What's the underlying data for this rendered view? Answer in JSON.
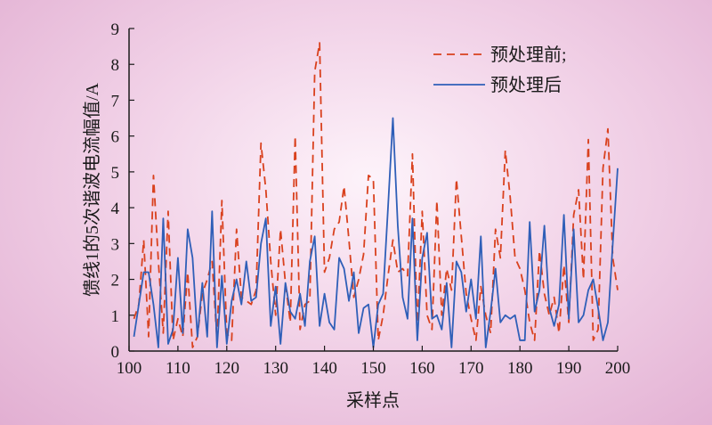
{
  "chart_data": {
    "type": "line",
    "title": "",
    "xlabel": "采样点",
    "ylabel": "馈线1的5次谐波电流幅值/A",
    "xlim": [
      100,
      200
    ],
    "ylim": [
      0,
      9
    ],
    "xticks": [
      100,
      110,
      120,
      130,
      140,
      150,
      160,
      170,
      180,
      190,
      200
    ],
    "yticks": [
      0,
      1,
      2,
      3,
      4,
      5,
      6,
      7,
      8,
      9
    ],
    "grid": false,
    "legend_position": "top-right",
    "x": [
      101,
      102,
      103,
      104,
      105,
      106,
      107,
      108,
      109,
      110,
      111,
      112,
      113,
      114,
      115,
      116,
      117,
      118,
      119,
      120,
      121,
      122,
      123,
      124,
      125,
      126,
      127,
      128,
      129,
      130,
      131,
      132,
      133,
      134,
      135,
      136,
      137,
      138,
      139,
      140,
      141,
      142,
      143,
      144,
      145,
      146,
      147,
      148,
      149,
      150,
      151,
      152,
      153,
      154,
      155,
      156,
      157,
      158,
      159,
      160,
      161,
      162,
      163,
      164,
      165,
      166,
      167,
      168,
      169,
      170,
      171,
      172,
      173,
      174,
      175,
      176,
      177,
      178,
      179,
      180,
      181,
      182,
      183,
      184,
      185,
      186,
      187,
      188,
      189,
      190,
      191,
      192,
      193,
      194,
      195,
      196,
      197,
      198,
      199,
      200
    ],
    "series": [
      {
        "name": "预处理前;",
        "style": "dashed",
        "color": "#d9411e",
        "values": [
          0.9,
          1.3,
          3.1,
          0.4,
          4.9,
          2.5,
          0.5,
          3.9,
          0.3,
          0.9,
          0.4,
          2.2,
          0.1,
          0.4,
          1.6,
          2.0,
          2.5,
          0.3,
          4.2,
          0.5,
          0.3,
          3.4,
          1.5,
          1.4,
          1.3,
          1.7,
          5.8,
          4.5,
          2.5,
          1.0,
          3.4,
          1.9,
          0.8,
          6.0,
          0.6,
          1.3,
          1.4,
          7.8,
          8.6,
          2.2,
          2.6,
          3.4,
          3.6,
          4.6,
          3.1,
          1.5,
          2.0,
          2.7,
          4.9,
          4.8,
          0.3,
          1.0,
          2.1,
          3.1,
          2.2,
          2.3,
          2.1,
          5.5,
          0.6,
          3.9,
          1.0,
          0.6,
          4.2,
          1.0,
          2.3,
          1.7,
          4.8,
          3.2,
          1.6,
          0.9,
          0.3,
          1.8,
          1.0,
          0.5,
          3.4,
          2.6,
          5.6,
          4.3,
          2.6,
          2.3,
          1.7,
          0.8,
          0.3,
          2.8,
          1.6,
          1.0,
          1.5,
          0.5,
          2.4,
          0.8,
          3.8,
          4.5,
          2.0,
          5.9,
          0.3,
          0.6,
          5.1,
          6.2,
          2.6,
          1.7
        ]
      },
      {
        "name": "预处理后",
        "style": "solid",
        "color": "#2f5fb8",
        "values": [
          0.4,
          1.3,
          2.2,
          2.2,
          1.3,
          0.1,
          3.7,
          0.2,
          0.6,
          2.6,
          0.5,
          3.4,
          2.6,
          0.4,
          1.9,
          0.4,
          3.9,
          0.1,
          2.1,
          0.2,
          1.4,
          2.0,
          1.3,
          2.5,
          1.4,
          1.5,
          3.0,
          3.7,
          0.7,
          1.8,
          0.2,
          1.9,
          1.1,
          0.9,
          1.6,
          0.7,
          2.5,
          3.2,
          0.7,
          1.6,
          0.8,
          0.6,
          2.6,
          2.3,
          1.4,
          2.2,
          0.5,
          1.2,
          1.3,
          0.1,
          1.3,
          1.6,
          4.0,
          6.5,
          3.5,
          1.5,
          0.9,
          3.7,
          0.3,
          2.6,
          3.3,
          0.9,
          1.0,
          0.6,
          1.9,
          0.1,
          2.5,
          2.2,
          1.1,
          2.0,
          0.9,
          3.2,
          0.1,
          1.1,
          2.3,
          0.8,
          1.0,
          0.9,
          1.0,
          0.3,
          0.3,
          3.6,
          1.1,
          1.7,
          3.5,
          1.2,
          0.7,
          1.3,
          3.8,
          0.9,
          3.4,
          0.8,
          1.0,
          1.7,
          2.0,
          1.2,
          0.3,
          0.8,
          3.0,
          5.1
        ]
      }
    ]
  }
}
